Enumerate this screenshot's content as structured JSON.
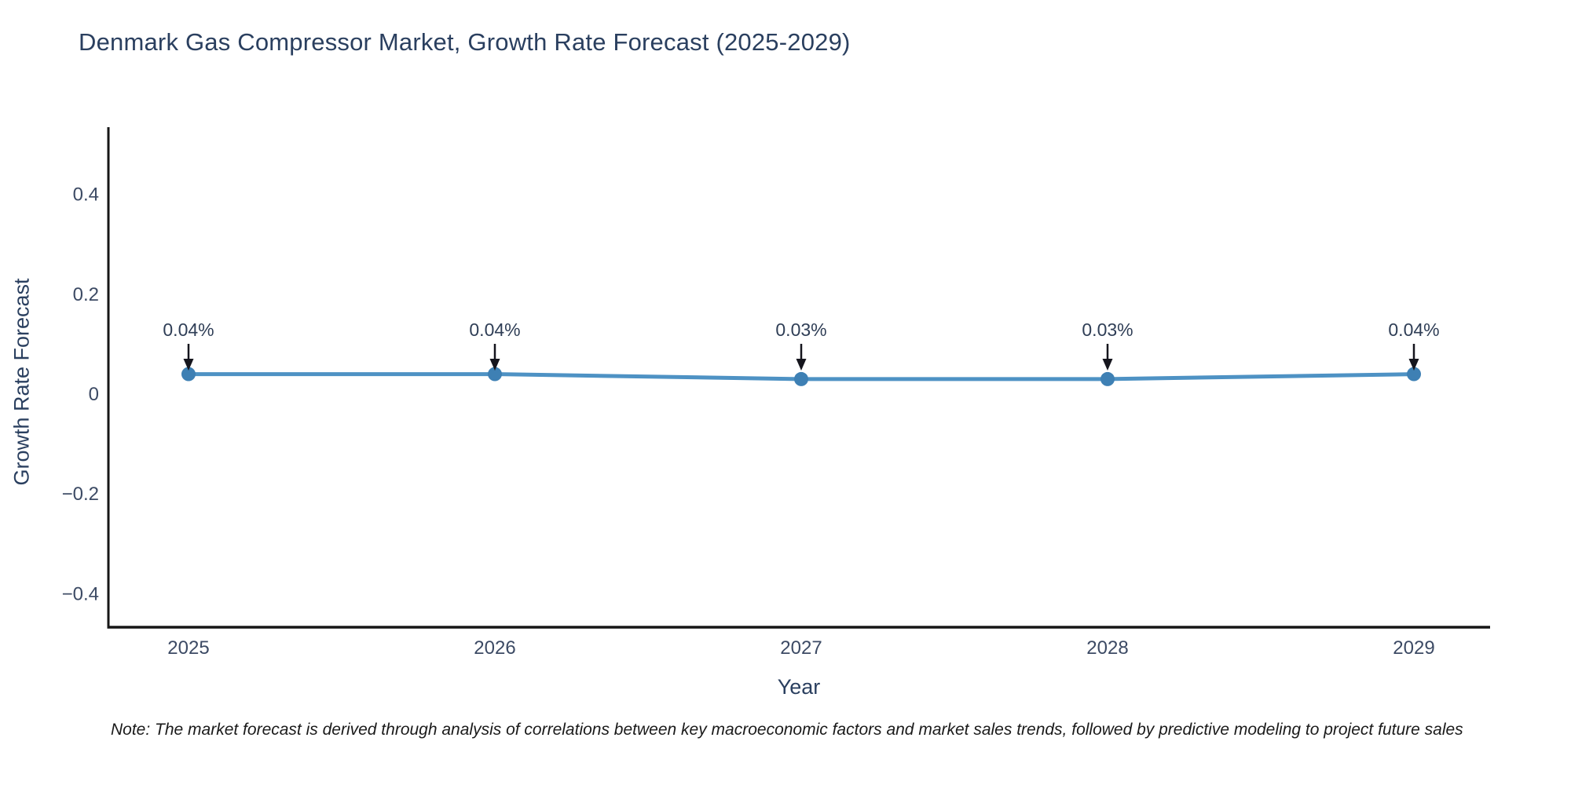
{
  "chart_data": {
    "type": "line",
    "title": "Denmark Gas Compressor Market, Growth Rate Forecast (2025-2029)",
    "xlabel": "Year",
    "ylabel": "Growth Rate Forecast",
    "categories": [
      "2025",
      "2026",
      "2027",
      "2028",
      "2029"
    ],
    "series": [
      {
        "name": "Growth Rate Forecast",
        "values": [
          0.04,
          0.04,
          0.03,
          0.03,
          0.04
        ]
      }
    ],
    "point_labels": [
      "0.04%",
      "0.04%",
      "0.03%",
      "0.03%",
      "0.04%"
    ],
    "yticks": {
      "values": [
        0.4,
        0.2,
        0,
        -0.2,
        -0.4
      ],
      "labels": [
        "0.4",
        "0.2",
        "0",
        "−0.2",
        "−0.4"
      ]
    },
    "ylim": [
      -0.47,
      0.535
    ],
    "grid": false,
    "legend": false,
    "annotations_have_arrows": true
  },
  "footnote": {
    "text": "Note: The market forecast is derived through analysis of correlations between key macroeconomic factors and market sales trends, followed by predictive modeling to project future sales"
  },
  "colors": {
    "title_text": "#2a3f5f",
    "tick_text": "#3c4a64",
    "axis_line": "#161616",
    "series_line": "#4e92c4",
    "marker_fill": "#3e80b4",
    "annotation_text": "#2f3e56",
    "arrow": "#15151d",
    "background": "#ffffff"
  }
}
